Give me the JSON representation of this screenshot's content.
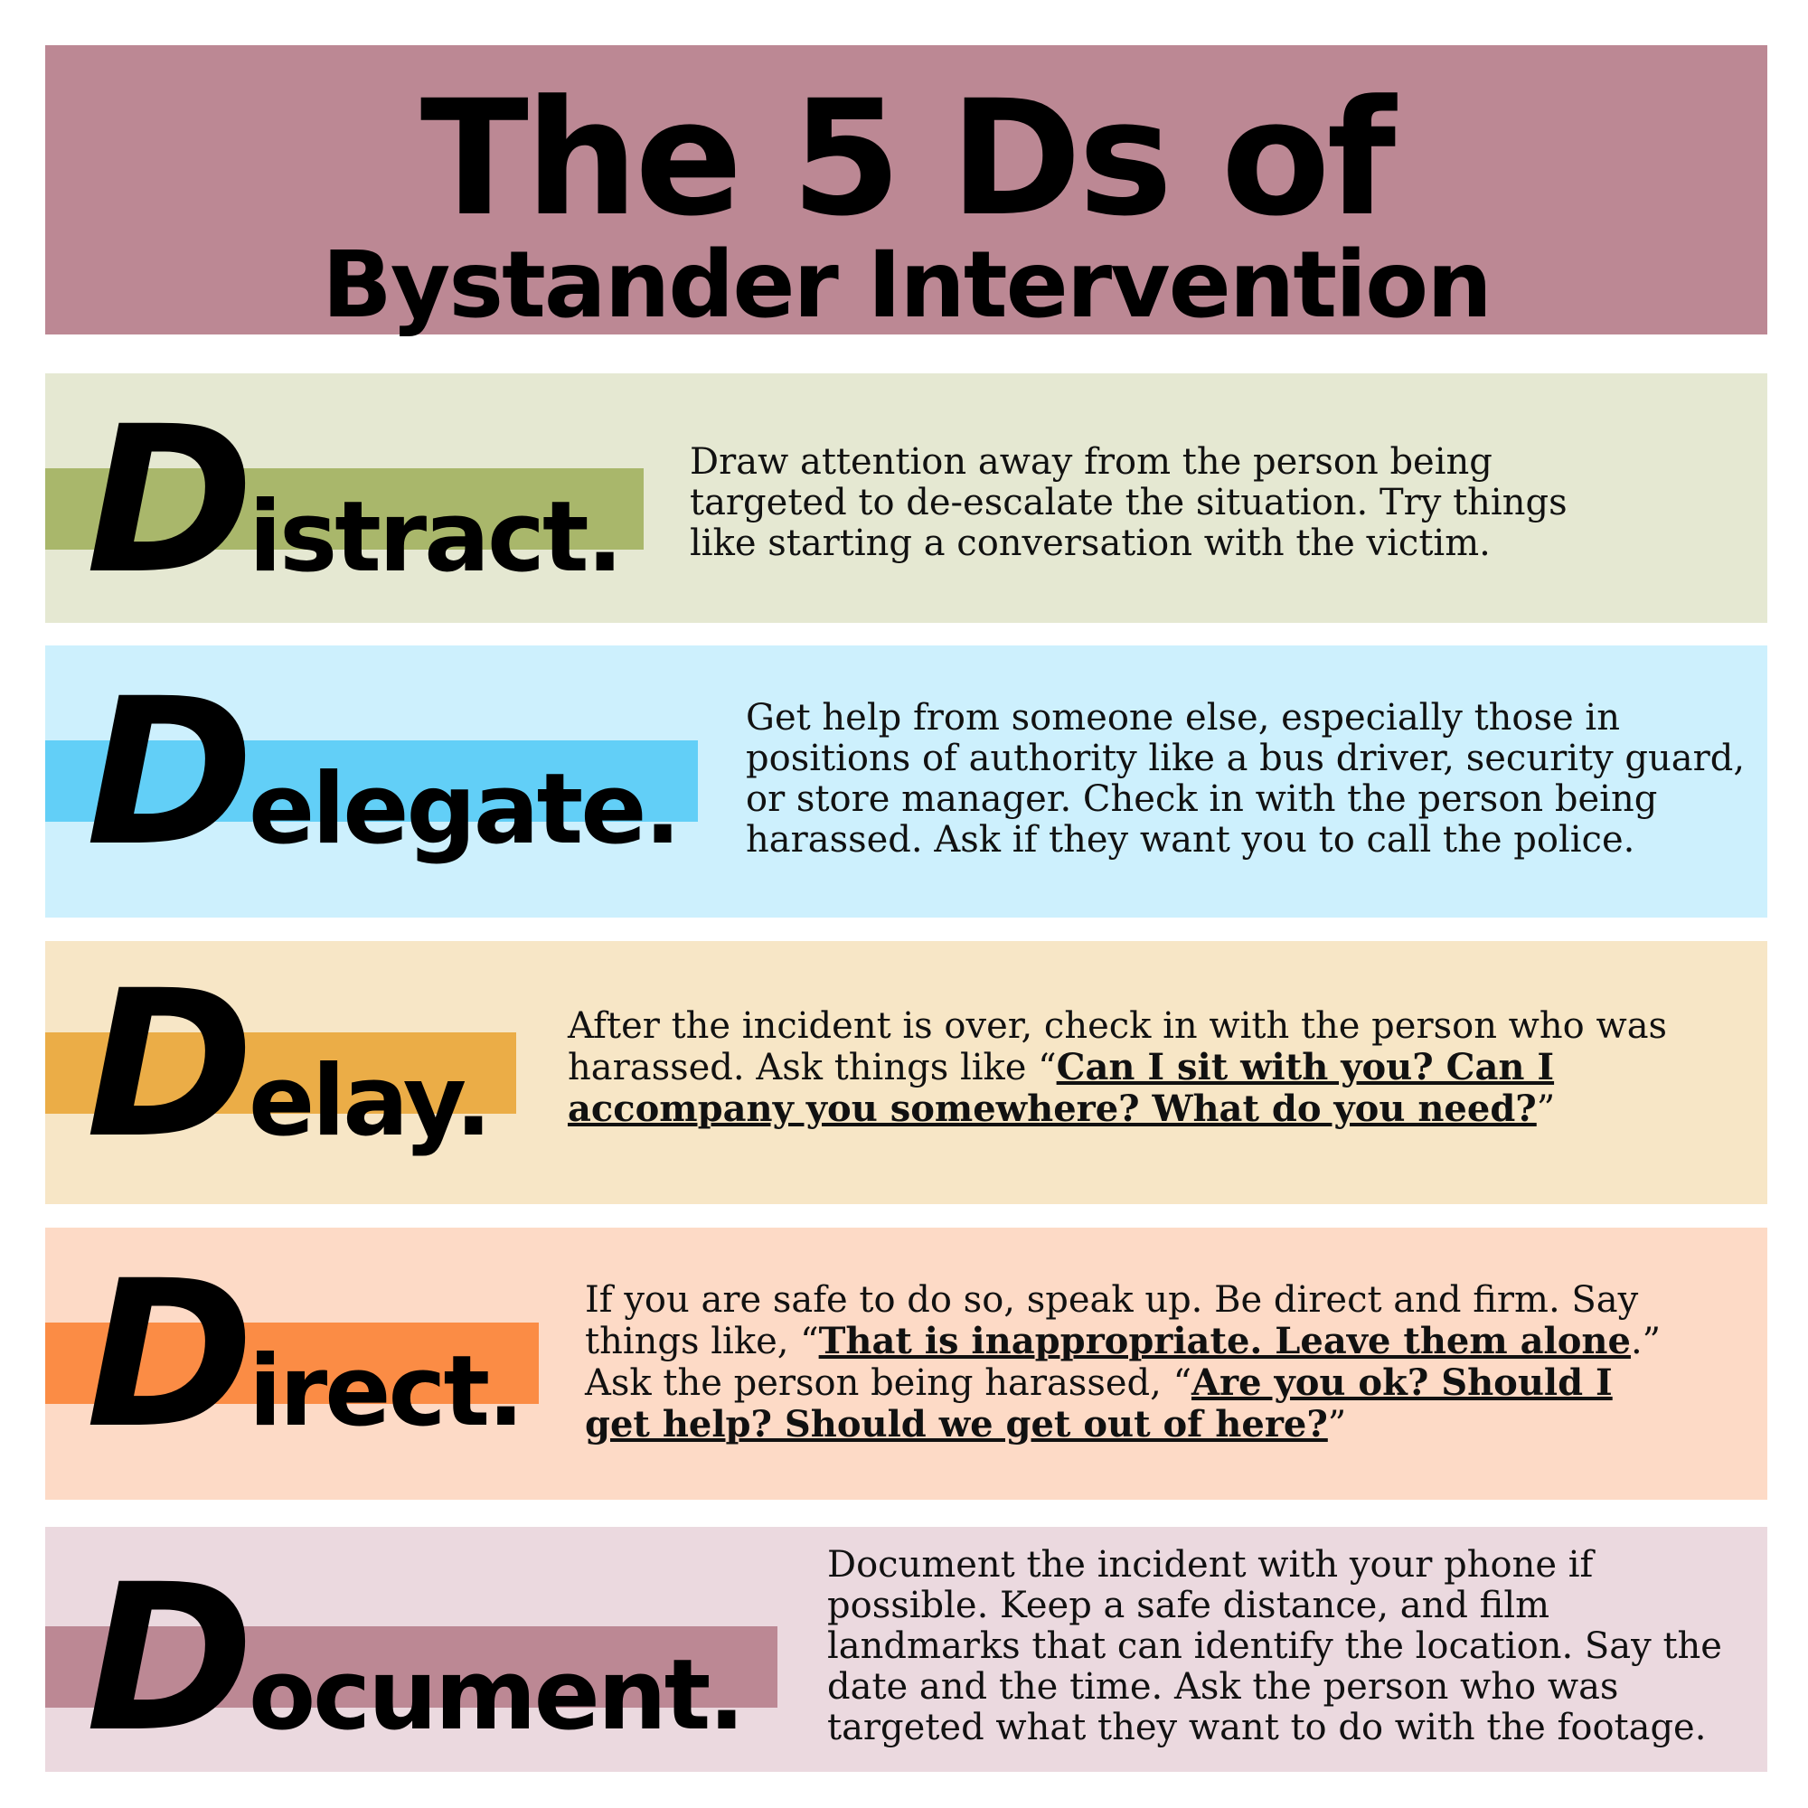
{
  "title": {
    "line1": "The 5 Ds of",
    "line2": "Bystander Intervention"
  },
  "steps": [
    {
      "letter": "D",
      "rest": "istract.",
      "bar_color": "#a9b76b",
      "panel_color": "#e5e8d2",
      "text": "Draw attention away from the person being targeted to de-escalate the situation. Try things like starting a conversation with the victim."
    },
    {
      "letter": "D",
      "rest": "elegate.",
      "bar_color": "#62cff7",
      "panel_color": "#cdf0fd",
      "text": "Get help from someone else, especially those in positions of authority like a bus driver, security guard, or store manager. Check in with the person being harassed. Ask if they want you to call the police."
    },
    {
      "letter": "D",
      "rest": "elay.",
      "bar_color": "#ebad47",
      "panel_color": "#f7e6c6",
      "text_before": "After the incident is over, check in with the person who was harassed. Ask things like “",
      "quote": "Can I sit with you? Can I accompany you somewhere? What do you need?",
      "text_after": "”"
    },
    {
      "letter": "D",
      "rest": "irect.",
      "bar_color": "#fb8c45",
      "panel_color": "#fddac6",
      "text_before": "If you are safe to do so, speak up. Be direct and firm. Say things like, “",
      "quote1": "That is inappropriate. Leave them alone",
      "text_middle": ".” Ask the person being harassed, “",
      "quote2": "Are you ok? Should I get help? Should we get out of here?",
      "text_after": "”"
    },
    {
      "letter": "D",
      "rest": "ocument.",
      "bar_color": "#bc8894",
      "panel_color": "#ebd9df",
      "text": "Document the incident with your phone if possible. Keep a safe distance, and film landmarks that can identify the location. Say the date and the time. Ask the person who was targeted what they want to do with the footage."
    }
  ]
}
